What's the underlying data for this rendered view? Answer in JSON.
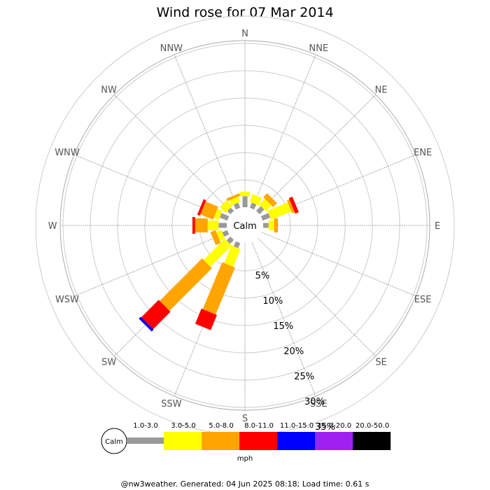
{
  "chart_data": {
    "type": "wind-rose",
    "title": "Wind rose for 07 Mar 2014",
    "calm_label": "Calm",
    "directions": [
      "N",
      "NNE",
      "NE",
      "ENE",
      "E",
      "ESE",
      "SE",
      "SSE",
      "S",
      "SSW",
      "SW",
      "WSW",
      "W",
      "WNW",
      "NW",
      "NNW"
    ],
    "percent_rings": [
      "5%",
      "10%",
      "15%",
      "20%",
      "25%",
      "30%",
      "35%"
    ],
    "ring_values": [
      5,
      10,
      15,
      20,
      25,
      30,
      35
    ],
    "speed_unit": "mph",
    "speed_bins": [
      {
        "label": "",
        "color": "#999999"
      },
      {
        "label": "1.0-3.0",
        "color": "#ffff00"
      },
      {
        "label": "3.0-5.0",
        "color": "#ffa500"
      },
      {
        "label": "5.0-8.0",
        "color": "#ff0000"
      },
      {
        "label": "8.0-11.0",
        "color": "#0000ff"
      },
      {
        "label": "11.0-15.0",
        "color": "#a020f0"
      },
      {
        "label": "15.0-20.0",
        "color": "#000000"
      },
      {
        "label": "20.0-50.0",
        "color": ""
      }
    ],
    "series": [
      {
        "direction": "N",
        "values": [
          2.0,
          0.8,
          0.0,
          0.0,
          0.0,
          0.0,
          0.0
        ]
      },
      {
        "direction": "NNE",
        "values": [
          1.0,
          1.5,
          0.0,
          0.0,
          0.0,
          0.0,
          0.0
        ]
      },
      {
        "direction": "NE",
        "values": [
          1.2,
          1.5,
          1.0,
          0.0,
          0.0,
          0.0,
          0.0
        ]
      },
      {
        "direction": "ENE",
        "values": [
          1.5,
          4.0,
          0.5,
          0.7,
          0.0,
          0.0,
          0.0
        ]
      },
      {
        "direction": "E",
        "values": [
          1.0,
          1.0,
          0.7,
          0.0,
          0.0,
          0.0,
          0.0
        ]
      },
      {
        "direction": "ESE",
        "values": [
          0.0,
          0.0,
          0.0,
          0.0,
          0.0,
          0.0,
          0.0
        ]
      },
      {
        "direction": "SE",
        "values": [
          0.0,
          0.0,
          0.0,
          0.0,
          0.0,
          0.0,
          0.0
        ]
      },
      {
        "direction": "SSE",
        "values": [
          0.0,
          0.0,
          0.0,
          0.0,
          0.0,
          0.0,
          0.0
        ]
      },
      {
        "direction": "S",
        "values": [
          0.0,
          0.0,
          0.0,
          0.0,
          0.0,
          0.0,
          0.0
        ]
      },
      {
        "direction": "SSW",
        "values": [
          1.0,
          3.5,
          9.3,
          3.0,
          0.0,
          0.0,
          0.0
        ]
      },
      {
        "direction": "SW",
        "values": [
          1.0,
          5.5,
          11.0,
          4.5,
          0.5,
          0.0,
          0.0
        ]
      },
      {
        "direction": "WSW",
        "values": [
          1.0,
          1.0,
          1.0,
          0.0,
          0.0,
          0.0,
          0.0
        ]
      },
      {
        "direction": "W",
        "values": [
          1.5,
          2.0,
          2.3,
          0.5,
          0.0,
          0.0,
          0.0
        ]
      },
      {
        "direction": "WNW",
        "values": [
          1.5,
          1.0,
          2.5,
          0.5,
          0.0,
          0.0,
          0.0
        ]
      },
      {
        "direction": "NW",
        "values": [
          0.8,
          1.5,
          0.0,
          0.0,
          0.0,
          0.0,
          0.0
        ]
      },
      {
        "direction": "NNW",
        "values": [
          1.0,
          1.0,
          0.5,
          0.0,
          0.0,
          0.0,
          0.0
        ]
      }
    ]
  },
  "footer": "@nw3weather. Generated: 04 Jun 2025 08:18; Load time: 0.61 s"
}
